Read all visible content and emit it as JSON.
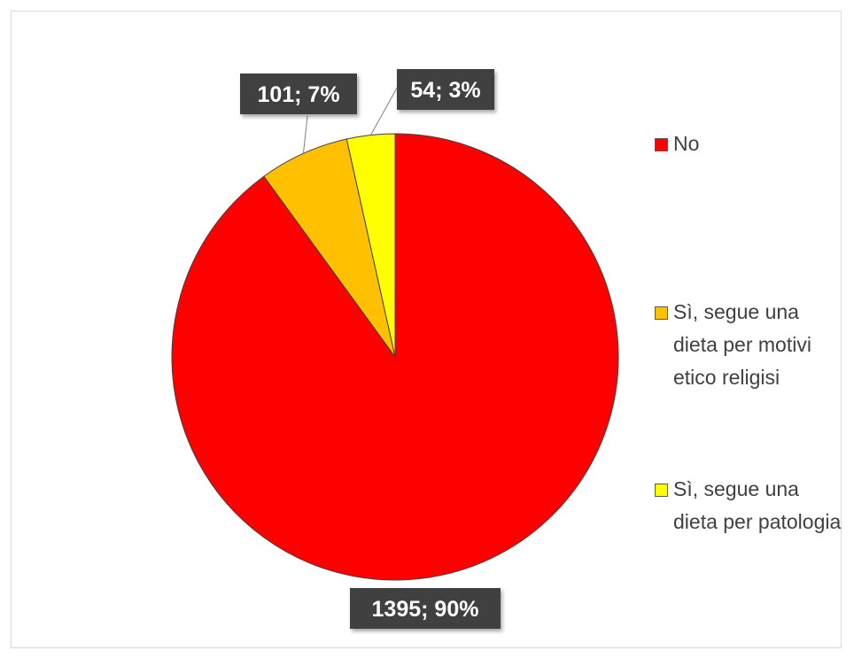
{
  "chart_data": {
    "type": "pie",
    "title": "",
    "slices": [
      {
        "label": "No",
        "value": 1395,
        "percent": 90,
        "color": "#ff0000",
        "data_label": "1395; 90%"
      },
      {
        "label": "Sì, segue una dieta per motivi etico religisi",
        "value": 101,
        "percent": 7,
        "color": "#ffc000",
        "data_label": "101; 7%"
      },
      {
        "label": "Sì, segue una dieta per patologia",
        "value": 54,
        "percent": 3,
        "color": "#ffff00",
        "data_label": "54; 3%"
      }
    ],
    "legend_position": "right",
    "data_label_style": {
      "background": "#404040",
      "text_color": "#ffffff"
    }
  },
  "legend": {
    "items": [
      {
        "label": "No",
        "color": "#ff0000"
      },
      {
        "label": "Sì, segue una dieta per motivi etico religisi",
        "color": "#ffc000"
      },
      {
        "label": "Sì, segue una dieta per patologia",
        "color": "#ffff00"
      }
    ]
  }
}
